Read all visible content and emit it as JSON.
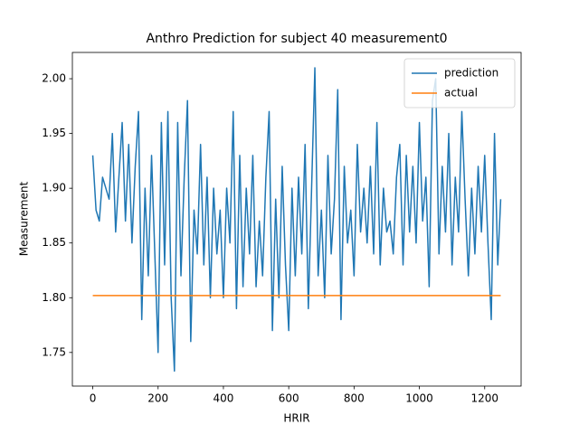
{
  "chart_data": {
    "type": "line",
    "title": "Anthro Prediction for subject 40 measurement0",
    "x_label": "HRIR",
    "y_label": "Measurement",
    "x": [
      0,
      10,
      20,
      30,
      40,
      50,
      60,
      70,
      80,
      90,
      100,
      110,
      120,
      130,
      140,
      150,
      160,
      170,
      180,
      190,
      200,
      210,
      220,
      230,
      240,
      250,
      260,
      270,
      280,
      290,
      300,
      310,
      320,
      330,
      340,
      350,
      360,
      370,
      380,
      390,
      400,
      410,
      420,
      430,
      440,
      450,
      460,
      470,
      480,
      490,
      500,
      510,
      520,
      530,
      540,
      550,
      560,
      570,
      580,
      590,
      600,
      610,
      620,
      630,
      640,
      650,
      660,
      670,
      680,
      690,
      700,
      710,
      720,
      730,
      740,
      750,
      760,
      770,
      780,
      790,
      800,
      810,
      820,
      830,
      840,
      850,
      860,
      870,
      880,
      890,
      900,
      910,
      920,
      930,
      940,
      950,
      960,
      970,
      980,
      990,
      1000,
      1010,
      1020,
      1030,
      1040,
      1050,
      1060,
      1070,
      1080,
      1090,
      1100,
      1110,
      1120,
      1130,
      1140,
      1150,
      1160,
      1170,
      1180,
      1190,
      1200,
      1210,
      1220,
      1230,
      1240,
      1249
    ],
    "series": [
      {
        "name": "prediction",
        "color": "#1f77b4",
        "values": [
          1.93,
          1.88,
          1.87,
          1.91,
          1.9,
          1.89,
          1.95,
          1.86,
          1.91,
          1.96,
          1.87,
          1.94,
          1.85,
          1.92,
          1.97,
          1.78,
          1.9,
          1.82,
          1.93,
          1.84,
          1.75,
          1.96,
          1.83,
          1.97,
          1.8,
          1.733,
          1.96,
          1.82,
          1.91,
          1.98,
          1.76,
          1.88,
          1.84,
          1.94,
          1.83,
          1.91,
          1.8,
          1.9,
          1.84,
          1.88,
          1.8,
          1.9,
          1.85,
          1.97,
          1.79,
          1.93,
          1.81,
          1.9,
          1.84,
          1.93,
          1.81,
          1.87,
          1.82,
          1.91,
          1.97,
          1.77,
          1.89,
          1.8,
          1.92,
          1.83,
          1.77,
          1.9,
          1.82,
          1.91,
          1.84,
          1.94,
          1.79,
          1.9,
          2.01,
          1.82,
          1.88,
          1.8,
          1.93,
          1.84,
          1.89,
          1.99,
          1.78,
          1.92,
          1.85,
          1.88,
          1.82,
          1.94,
          1.86,
          1.9,
          1.85,
          1.92,
          1.84,
          1.96,
          1.83,
          1.9,
          1.86,
          1.87,
          1.84,
          1.91,
          1.94,
          1.83,
          1.93,
          1.86,
          1.92,
          1.85,
          1.96,
          1.87,
          1.91,
          1.81,
          1.98,
          2.0,
          1.84,
          1.92,
          1.86,
          1.95,
          1.83,
          1.91,
          1.86,
          1.97,
          1.89,
          1.82,
          1.9,
          1.84,
          1.92,
          1.86,
          1.93,
          1.85,
          1.78,
          1.95,
          1.83,
          1.89
        ]
      },
      {
        "name": "actual",
        "color": "#ff7f0e",
        "values": [
          1.802,
          1.802,
          1.802,
          1.802,
          1.802,
          1.802,
          1.802,
          1.802,
          1.802,
          1.802,
          1.802,
          1.802,
          1.802,
          1.802,
          1.802,
          1.802,
          1.802,
          1.802,
          1.802,
          1.802,
          1.802,
          1.802,
          1.802,
          1.802,
          1.802,
          1.802,
          1.802,
          1.802,
          1.802,
          1.802,
          1.802,
          1.802,
          1.802,
          1.802,
          1.802,
          1.802,
          1.802,
          1.802,
          1.802,
          1.802,
          1.802,
          1.802,
          1.802,
          1.802,
          1.802,
          1.802,
          1.802,
          1.802,
          1.802,
          1.802,
          1.802,
          1.802,
          1.802,
          1.802,
          1.802,
          1.802,
          1.802,
          1.802,
          1.802,
          1.802,
          1.802,
          1.802,
          1.802,
          1.802,
          1.802,
          1.802,
          1.802,
          1.802,
          1.802,
          1.802,
          1.802,
          1.802,
          1.802,
          1.802,
          1.802,
          1.802,
          1.802,
          1.802,
          1.802,
          1.802,
          1.802,
          1.802,
          1.802,
          1.802,
          1.802,
          1.802,
          1.802,
          1.802,
          1.802,
          1.802,
          1.802,
          1.802,
          1.802,
          1.802,
          1.802,
          1.802,
          1.802,
          1.802,
          1.802,
          1.802,
          1.802,
          1.802,
          1.802,
          1.802,
          1.802,
          1.802,
          1.802,
          1.802,
          1.802,
          1.802,
          1.802,
          1.802,
          1.802,
          1.802,
          1.802,
          1.802,
          1.802,
          1.802,
          1.802,
          1.802,
          1.802,
          1.802,
          1.802,
          1.802,
          1.802,
          1.802
        ]
      }
    ],
    "xlim": [
      -62.45,
      1311.45
    ],
    "xticks": [
      0,
      200,
      400,
      600,
      800,
      1000,
      1200
    ],
    "ylim": [
      1.7193,
      2.024
    ],
    "yticks": [
      1.75,
      {
        "value": 1.8,
        "label": "1.80"
      },
      1.85,
      {
        "value": 1.9,
        "label": "1.90"
      },
      1.95,
      {
        "value": 2.0,
        "label": "2.00"
      }
    ],
    "legend": "upper right"
  }
}
